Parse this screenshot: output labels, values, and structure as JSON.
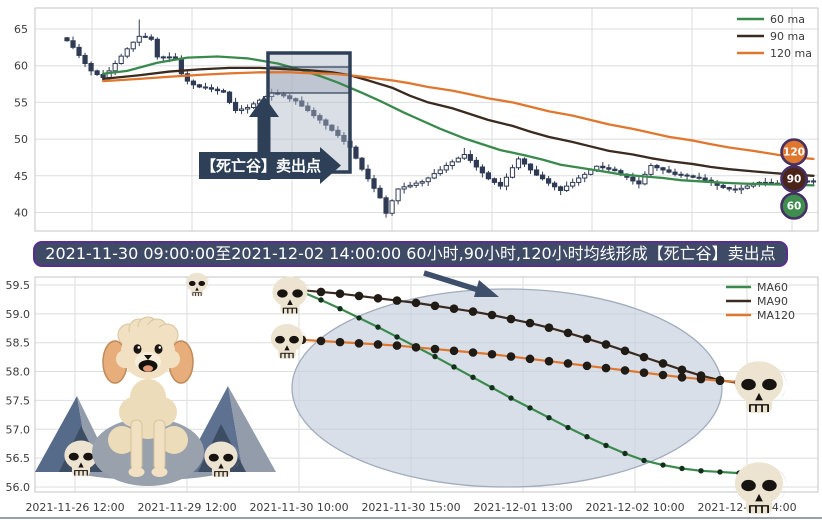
{
  "banner": {
    "text": "2021-11-30 09:00:00至2021-12-02 14:00:00 60小时,90小时,120小时均线形成【死亡谷】卖出点"
  },
  "palette": {
    "ma60_green": "#3a8a4d",
    "ma90_dark": "#3b2a1f",
    "ma120_orange": "#e0772e",
    "candle": "#2f3b54",
    "grid": "#dedede",
    "spine": "#c6c6c6",
    "selection_navy": "#2e4057",
    "selection_fill": "rgba(173,182,197,0.45)",
    "selection_band_fill": "rgba(148,158,175,0.38)",
    "banner_bg": "#3e4a66",
    "banner_border": "#5c2d91",
    "ellipse_fill": "rgba(197,206,220,0.65)",
    "ellipse_stroke": "#a2adbd",
    "badge_ring": "#463063",
    "tick_text": "#3c3c3c",
    "skull_bone": "#ece3d0",
    "skull_shade": "#d2c6ae",
    "skull_dark": "#171310",
    "mountain_dark": "#566a8a",
    "mountain_mid": "#5e7191",
    "mountain_light": "#939caa",
    "cave_dark": "#3d4d63",
    "dog_fluff": "#f1e1c2",
    "dog_ear": "#e7ad7b"
  },
  "chart_data": [
    {
      "type": "candlestick",
      "title": "",
      "xlabel": "",
      "ylabel": "",
      "ylim": [
        38,
        67
      ],
      "y_ticks": [
        65,
        60,
        55,
        50,
        45,
        40
      ],
      "grid": true,
      "legend_position": "upper right",
      "legend": [
        "60 ma",
        "90 ma",
        "120 ma"
      ],
      "closes": [
        63.4,
        62.5,
        61.4,
        60.3,
        59.3,
        58.8,
        58.4,
        59.3,
        60.3,
        61.3,
        62.3,
        63.2,
        64.0,
        63.9,
        63.6,
        61.2,
        61.1,
        61.2,
        61.0,
        58.9,
        57.9,
        57.4,
        57.1,
        57.0,
        56.8,
        56.6,
        56.4,
        55.0,
        53.9,
        54.1,
        54.3,
        54.8,
        55.3,
        55.8,
        56.3,
        56.1,
        55.9,
        55.5,
        55.2,
        54.5,
        53.9,
        53.2,
        52.6,
        51.9,
        51.2,
        50.5,
        49.7,
        48.9,
        47.4,
        45.9,
        44.6,
        43.3,
        42.0,
        39.9,
        41.6,
        43.2,
        43.5,
        43.7,
        44.0,
        44.2,
        44.7,
        45.3,
        45.8,
        46.4,
        46.9,
        47.4,
        47.9,
        47.1,
        46.2,
        45.4,
        44.6,
        44.1,
        43.6,
        44.8,
        46.1,
        47.3,
        46.6,
        45.8,
        45.1,
        44.6,
        44.0,
        43.5,
        43.0,
        43.6,
        44.1,
        44.7,
        45.2,
        45.8,
        46.3,
        46.1,
        45.9,
        45.7,
        45.2,
        44.8,
        44.3,
        43.9,
        45.2,
        46.4,
        46.1,
        45.8,
        45.5,
        45.2,
        45.1,
        45.0,
        44.8,
        44.7,
        44.4,
        44.1,
        43.7,
        43.4,
        43.2,
        43.1,
        43.3,
        43.6,
        43.9,
        44.1,
        44.1,
        44.0,
        44.0,
        44.0,
        44.1,
        44.2,
        44.3,
        44.3,
        44.2
      ],
      "wick_overrides": {
        "12": {
          "high": 66.3
        },
        "53": {
          "low": 39.3
        },
        "66": {
          "high": 48.8
        }
      },
      "ma_lines": [
        {
          "name": "60 ma",
          "color": "#3a8a4d",
          "points": [
            [
              6,
              58.9
            ],
            [
              10,
              59.3
            ],
            [
              15,
              60.4
            ],
            [
              20,
              61.1
            ],
            [
              25,
              61.25
            ],
            [
              30,
              61.0
            ],
            [
              35,
              60.3
            ],
            [
              39,
              59.4
            ],
            [
              42,
              58.6
            ],
            [
              45,
              57.7
            ],
            [
              49,
              56.3
            ],
            [
              52,
              55.2
            ],
            [
              56,
              53.6
            ],
            [
              59,
              52.5
            ],
            [
              62,
              51.4
            ],
            [
              66,
              50.1
            ],
            [
              69,
              49.3
            ],
            [
              72,
              48.5
            ],
            [
              76,
              47.8
            ],
            [
              79,
              47.2
            ],
            [
              82,
              46.5
            ],
            [
              86,
              46.0
            ],
            [
              89,
              45.6
            ],
            [
              92,
              45.2
            ],
            [
              96,
              44.9
            ],
            [
              99,
              44.7
            ],
            [
              102,
              44.4
            ],
            [
              106,
              44.2
            ],
            [
              109,
              44.05
            ],
            [
              112,
              43.95
            ],
            [
              116,
              43.85
            ],
            [
              119,
              43.8
            ],
            [
              122,
              43.75
            ],
            [
              124,
              43.7
            ]
          ]
        },
        {
          "name": "90 ma",
          "color": "#3b2a1f",
          "points": [
            [
              6,
              58.2
            ],
            [
              12,
              58.7
            ],
            [
              17,
              59.2
            ],
            [
              22,
              59.5
            ],
            [
              27,
              59.7
            ],
            [
              32,
              59.7
            ],
            [
              37,
              59.5
            ],
            [
              40,
              59.4
            ],
            [
              44,
              59.1
            ],
            [
              47,
              58.7
            ],
            [
              50,
              58.0
            ],
            [
              54,
              57.0
            ],
            [
              57,
              55.9
            ],
            [
              60,
              55.0
            ],
            [
              64,
              54.2
            ],
            [
              67,
              53.4
            ],
            [
              70,
              52.6
            ],
            [
              74,
              51.8
            ],
            [
              77,
              51.0
            ],
            [
              80,
              50.3
            ],
            [
              84,
              49.6
            ],
            [
              87,
              49.0
            ],
            [
              90,
              48.4
            ],
            [
              94,
              47.9
            ],
            [
              97,
              47.4
            ],
            [
              100,
              47.0
            ],
            [
              104,
              46.6
            ],
            [
              107,
              46.2
            ],
            [
              110,
              45.9
            ],
            [
              114,
              45.6
            ],
            [
              117,
              45.4
            ],
            [
              120,
              45.2
            ],
            [
              124,
              45.0
            ]
          ]
        },
        {
          "name": "120 ma",
          "color": "#e0772e",
          "points": [
            [
              6,
              57.9
            ],
            [
              12,
              58.2
            ],
            [
              17,
              58.5
            ],
            [
              22,
              58.75
            ],
            [
              27,
              58.95
            ],
            [
              32,
              59.1
            ],
            [
              37,
              59.1
            ],
            [
              40,
              59.0
            ],
            [
              44,
              58.9
            ],
            [
              47,
              58.7
            ],
            [
              50,
              58.4
            ],
            [
              54,
              58.0
            ],
            [
              57,
              57.6
            ],
            [
              60,
              57.1
            ],
            [
              64,
              56.6
            ],
            [
              67,
              56.1
            ],
            [
              70,
              55.55
            ],
            [
              74,
              55.0
            ],
            [
              77,
              54.4
            ],
            [
              80,
              53.8
            ],
            [
              84,
              53.2
            ],
            [
              87,
              52.6
            ],
            [
              90,
              52.0
            ],
            [
              94,
              51.4
            ],
            [
              97,
              50.85
            ],
            [
              100,
              50.3
            ],
            [
              104,
              49.8
            ],
            [
              107,
              49.3
            ],
            [
              110,
              48.85
            ],
            [
              114,
              48.4
            ],
            [
              117,
              48.0
            ],
            [
              120,
              47.6
            ],
            [
              124,
              47.3
            ]
          ]
        }
      ],
      "end_badges": [
        {
          "label": "120",
          "color": "#e0772e"
        },
        {
          "label": "90",
          "color": "#4a2418"
        },
        {
          "label": "60",
          "color": "#3f8d4f"
        }
      ],
      "annotation": "【死亡谷】卖出点"
    },
    {
      "type": "line",
      "title": "",
      "xlabel": "",
      "ylabel": "",
      "ylim": [
        55.9,
        59.6
      ],
      "y_ticks": [
        "59.5",
        "59.0",
        "58.5",
        "58.0",
        "57.5",
        "57.0",
        "56.5",
        "56.0"
      ],
      "x_ticks": [
        "2021-11-26 12:00",
        "2021-11-29 12:00",
        "2021-11-30 10:00",
        "2021-11-30 15:00",
        "2021-12-01 13:00",
        "2021-12-02 10:00",
        "2021-12-02 14:00"
      ],
      "grid": true,
      "legend_position": "upper right",
      "series": [
        {
          "name": "MA60",
          "color": "#3a8a4d",
          "marker": "small-dot",
          "values": [
            59.38,
            59.24,
            59.09,
            58.93,
            58.77,
            58.6,
            58.43,
            58.26,
            58.08,
            57.9,
            57.72,
            57.54,
            57.37,
            57.2,
            57.03,
            56.87,
            56.72,
            56.58,
            56.46,
            56.38,
            56.32,
            56.28,
            56.26,
            56.24
          ]
        },
        {
          "name": "MA90",
          "color": "#3b2a1f",
          "marker": "large-dot",
          "values": [
            59.41,
            59.38,
            59.35,
            59.31,
            59.27,
            59.23,
            59.19,
            59.14,
            59.09,
            59.04,
            58.98,
            58.91,
            58.84,
            58.76,
            58.67,
            58.57,
            58.47,
            58.36,
            58.25,
            58.14,
            58.03,
            57.93,
            57.85,
            57.8
          ]
        },
        {
          "name": "MA120",
          "color": "#e0772e",
          "marker": "large-dot",
          "values": [
            58.55,
            58.53,
            58.51,
            58.49,
            58.47,
            58.45,
            58.42,
            58.39,
            58.36,
            58.33,
            58.3,
            58.26,
            58.22,
            58.18,
            58.14,
            58.1,
            58.06,
            58.02,
            57.98,
            57.94,
            57.9,
            57.87,
            57.84,
            57.82
          ]
        }
      ],
      "decorations": {
        "highlight_ellipse": true,
        "skulls": [
          "ma60-ma90-start",
          "ma120-start",
          "ma90-ma120-end",
          "ma60-end",
          "left-mountain-base",
          "right-mountain-base",
          "top-edge-peek"
        ],
        "illustrations": [
          "poodle-dog",
          "left-mountain",
          "right-mountain"
        ]
      }
    }
  ]
}
